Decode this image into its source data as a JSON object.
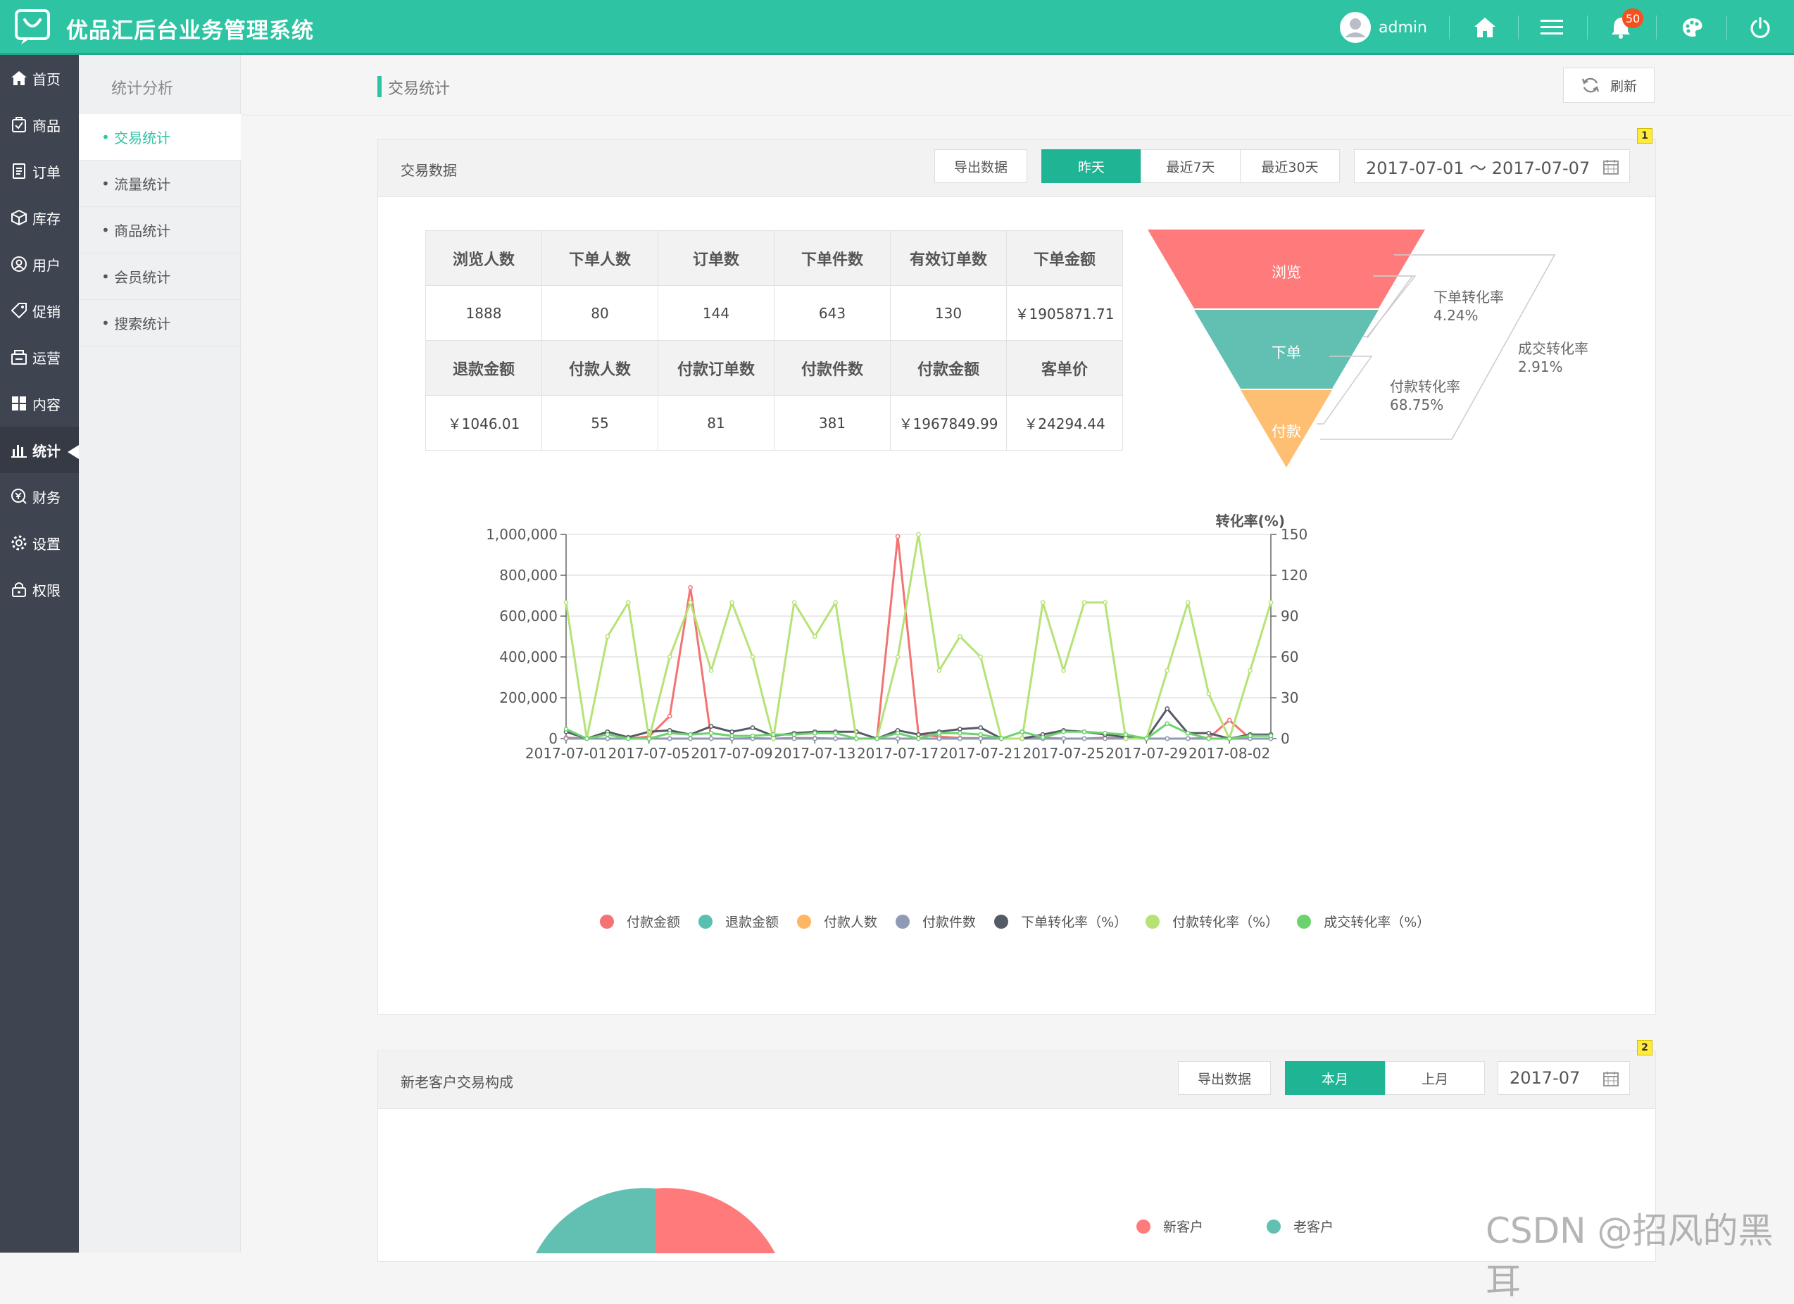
{
  "header": {
    "app_title": "优品汇后台业务管理系统",
    "username": "admin",
    "notification_count": "50"
  },
  "sidebar": {
    "items": [
      {
        "label": "首页",
        "icon": "home-icon"
      },
      {
        "label": "商品",
        "icon": "goods-icon"
      },
      {
        "label": "订单",
        "icon": "order-icon"
      },
      {
        "label": "库存",
        "icon": "inventory-icon"
      },
      {
        "label": "用户",
        "icon": "user-icon"
      },
      {
        "label": "促销",
        "icon": "tag-icon"
      },
      {
        "label": "运营",
        "icon": "operation-icon"
      },
      {
        "label": "内容",
        "icon": "content-icon"
      },
      {
        "label": "统计",
        "icon": "chart-icon"
      },
      {
        "label": "财务",
        "icon": "finance-icon"
      },
      {
        "label": "设置",
        "icon": "gear-icon"
      },
      {
        "label": "权限",
        "icon": "lock-icon"
      }
    ],
    "active_index": 8
  },
  "subnav": {
    "title": "统计分析",
    "items": [
      "交易统计",
      "流量统计",
      "商品统计",
      "会员统计",
      "搜索统计"
    ],
    "active_index": 0
  },
  "page": {
    "title": "交易统计",
    "refresh_label": "刷新"
  },
  "trade_panel": {
    "title": "交易数据",
    "badge": "1",
    "export_label": "导出数据",
    "range_buttons": [
      "昨天",
      "最近7天",
      "最近30天"
    ],
    "active_range": 0,
    "date_range": "2017-07-01 ～ 2017-07-07",
    "table": {
      "rows": [
        [
          "浏览人数",
          "下单人数",
          "订单数",
          "下单件数",
          "有效订单数",
          "下单金额"
        ],
        [
          "1888",
          "80",
          "144",
          "643",
          "130",
          "￥1905871.71"
        ],
        [
          "退款金额",
          "付款人数",
          "付款订单数",
          "付款件数",
          "付款金额",
          "客单价"
        ],
        [
          "￥1046.01",
          "55",
          "81",
          "381",
          "￥1967849.99",
          "￥24294.44"
        ]
      ]
    },
    "funnel": {
      "stages": [
        {
          "label": "浏览",
          "color": "#ff7b7b"
        },
        {
          "label": "下单",
          "color": "#62c0b3"
        },
        {
          "label": "付款",
          "color": "#ffbf73"
        }
      ],
      "rates": [
        {
          "label": "下单转化率",
          "value": "4.24%"
        },
        {
          "label": "付款转化率",
          "value": "68.75%"
        },
        {
          "label": "成交转化率",
          "value": "2.91%"
        }
      ]
    }
  },
  "chart_data": {
    "type": "line",
    "x": [
      "2017-07-01",
      "2017-07-02",
      "2017-07-03",
      "2017-07-04",
      "2017-07-05",
      "2017-07-06",
      "2017-07-07",
      "2017-07-08",
      "2017-07-09",
      "2017-07-10",
      "2017-07-11",
      "2017-07-12",
      "2017-07-13",
      "2017-07-14",
      "2017-07-15",
      "2017-07-16",
      "2017-07-17",
      "2017-07-18",
      "2017-07-19",
      "2017-07-20",
      "2017-07-21",
      "2017-07-22",
      "2017-07-23",
      "2017-07-24",
      "2017-07-25",
      "2017-07-26",
      "2017-07-27",
      "2017-07-28",
      "2017-07-29",
      "2017-07-30",
      "2017-07-31",
      "2017-08-01",
      "2017-08-02",
      "2017-08-03",
      "2017-08-04"
    ],
    "x_ticks": [
      "2017-07-01",
      "2017-07-05",
      "2017-07-09",
      "2017-07-13",
      "2017-07-17",
      "2017-07-21",
      "2017-07-25",
      "2017-07-29",
      "2017-08-02"
    ],
    "y_left": {
      "ticks": [
        "0",
        "200,000",
        "400,000",
        "600,000",
        "800,000",
        "1,000,000"
      ],
      "ylim": [
        0,
        1000000
      ]
    },
    "y_right": {
      "label": "转化率(%)",
      "ticks": [
        "0",
        "30",
        "60",
        "90",
        "120",
        "150"
      ],
      "ylim": [
        0,
        150
      ]
    },
    "series": [
      {
        "name": "付款金额",
        "axis": "left",
        "color": "#f47272",
        "values": [
          5000,
          0,
          0,
          0,
          10000,
          110000,
          740000,
          0,
          0,
          2000,
          0,
          3000,
          2000,
          0,
          0,
          1000,
          990000,
          20000,
          10000,
          3000,
          2000,
          0,
          0,
          5000,
          0,
          0,
          4000,
          0,
          0,
          0,
          0,
          3000,
          90000,
          0,
          0
        ]
      },
      {
        "name": "退款金额",
        "axis": "left",
        "color": "#58c0b0",
        "values": [
          0,
          0,
          0,
          0,
          0,
          0,
          0,
          0,
          0,
          0,
          0,
          0,
          0,
          0,
          0,
          0,
          0,
          0,
          0,
          0,
          0,
          0,
          0,
          0,
          0,
          0,
          0,
          0,
          0,
          0,
          0,
          0,
          0,
          0,
          0
        ]
      },
      {
        "name": "付款人数",
        "axis": "right",
        "color": "#ffb660",
        "values": [
          0,
          0,
          0,
          0,
          0,
          0,
          0,
          0,
          0,
          0,
          0,
          0,
          0,
          0,
          0,
          0,
          0,
          0,
          0,
          0,
          0,
          0,
          0,
          0,
          0,
          0,
          0,
          0,
          0,
          0,
          0,
          0,
          0,
          0,
          0
        ]
      },
      {
        "name": "付款件数",
        "axis": "right",
        "color": "#8f9ab4",
        "values": [
          0,
          0,
          0,
          0,
          0,
          0,
          0,
          0,
          0,
          0,
          0,
          0,
          0,
          0,
          0,
          0,
          0,
          0,
          0,
          0,
          0,
          0,
          0,
          0,
          0,
          0,
          0,
          0,
          0,
          0,
          0,
          0,
          0,
          0,
          0
        ]
      },
      {
        "name": "下单转化率(%)",
        "axis": "right",
        "color": "#555b66",
        "values": [
          5,
          0,
          5,
          1,
          5,
          6,
          3,
          9,
          5,
          8,
          2,
          4,
          5,
          5,
          5,
          0,
          6,
          3,
          5,
          7,
          8,
          0,
          0,
          3,
          6,
          5,
          3,
          1,
          0,
          22,
          4,
          4,
          0,
          3,
          3
        ]
      },
      {
        "name": "付款转化率(%)",
        "axis": "right",
        "color": "#b6e276",
        "values": [
          100,
          0,
          75,
          100,
          0,
          60,
          100,
          50,
          100,
          60,
          0,
          100,
          75,
          100,
          0,
          0,
          60,
          150,
          50,
          75,
          60,
          0,
          0,
          100,
          50,
          100,
          100,
          0,
          0,
          50,
          100,
          33,
          0,
          50,
          100
        ]
      },
      {
        "name": "成交转化率(%)",
        "axis": "right",
        "color": "#6cd36c",
        "values": [
          7,
          0,
          3,
          0,
          0,
          4,
          3,
          4,
          2,
          2,
          3,
          3,
          4,
          4,
          0,
          0,
          4,
          0,
          4,
          4,
          3,
          0,
          5,
          1,
          5,
          5,
          4,
          3,
          0,
          11,
          4,
          0,
          0,
          2,
          2
        ]
      }
    ],
    "legend": [
      "付款金额",
      "退款金额",
      "付款人数",
      "付款件数",
      "下单转化率（%）",
      "付款转化率（%）",
      "成交转化率（%）"
    ],
    "legend_colors": [
      "#f47272",
      "#58c0b0",
      "#ffb660",
      "#8f9ab4",
      "#555b66",
      "#b6e276",
      "#6cd36c"
    ],
    "legend_position": "bottom"
  },
  "customer_panel": {
    "title": "新老客户交易构成",
    "badge": "2",
    "export_label": "导出数据",
    "range_buttons": [
      "本月",
      "上月"
    ],
    "active_range": 0,
    "month": "2017-07",
    "pie_legend": [
      {
        "label": "新客户",
        "color": "#ff7b7b"
      },
      {
        "label": "老客户",
        "color": "#62c0b3"
      }
    ]
  },
  "watermark": "CSDN @招风的黑耳"
}
